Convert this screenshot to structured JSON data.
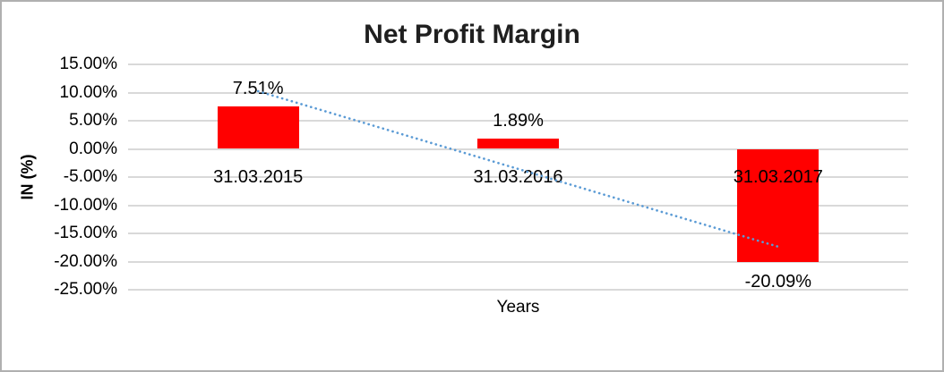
{
  "window": {
    "background": "#ffffff",
    "border_color": "#b0b0b0"
  },
  "chart_data": {
    "type": "bar",
    "title": "Net Profit Margin",
    "xlabel": "Years",
    "ylabel": "IN (%)",
    "categories": [
      "31.03.2015",
      "31.03.2016",
      "31.03.2017"
    ],
    "values": [
      7.51,
      1.89,
      -20.09
    ],
    "data_labels": [
      "7.51%",
      "1.89%",
      "-20.09%"
    ],
    "ylim": [
      -25,
      15
    ],
    "yticks": [
      {
        "value": 15,
        "label": "15.00%"
      },
      {
        "value": 10,
        "label": "10.00%"
      },
      {
        "value": 5,
        "label": "5.00%"
      },
      {
        "value": 0,
        "label": "0.00%"
      },
      {
        "value": -5,
        "label": "-5.00%"
      },
      {
        "value": -10,
        "label": "-10.00%"
      },
      {
        "value": -15,
        "label": "-15.00%"
      },
      {
        "value": -20,
        "label": "-20.00%"
      },
      {
        "value": -25,
        "label": "-25.00%"
      }
    ],
    "grid": true,
    "legend": false,
    "bar_color": "#ff0000",
    "gridline_color": "#d9d9d9",
    "trendline": {
      "type": "linear",
      "style": "dotted",
      "color": "#5b9bd5",
      "start_value": 10.24,
      "end_value": -17.36
    }
  }
}
